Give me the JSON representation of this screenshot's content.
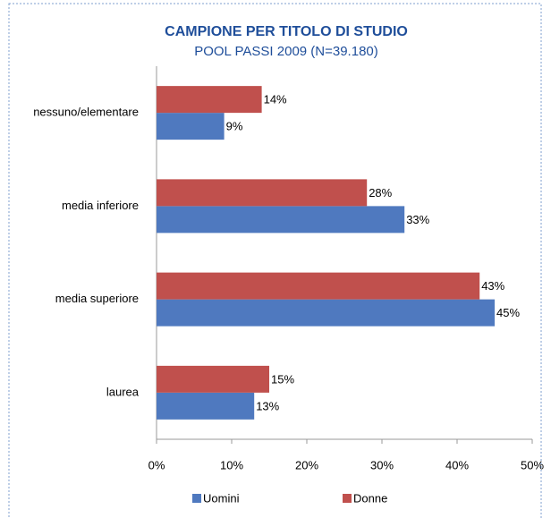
{
  "chart_data": {
    "type": "bar",
    "orientation": "horizontal",
    "title": "CAMPIONE PER TITOLO DI STUDIO",
    "subtitle": "POOL PASSI 2009 (N=39.180)",
    "categories": [
      "nessuno/elementare",
      "media inferiore",
      "media superiore",
      "laurea"
    ],
    "series": [
      {
        "name": "Uomini",
        "color": "#4f79bf",
        "values": [
          9,
          33,
          45,
          13
        ],
        "value_labels": [
          "9%",
          "33%",
          "45%",
          "13%"
        ]
      },
      {
        "name": "Donne",
        "color": "#c0504d",
        "values": [
          14,
          28,
          43,
          15
        ],
        "value_labels": [
          "14%",
          "28%",
          "43%",
          "15%"
        ]
      }
    ],
    "xlim": [
      0,
      50
    ],
    "xticks": [
      {
        "value": 0,
        "label": "0%"
      },
      {
        "value": 10,
        "label": "10%"
      },
      {
        "value": 20,
        "label": "20%"
      },
      {
        "value": 30,
        "label": "30%"
      },
      {
        "value": 40,
        "label": "40%"
      },
      {
        "value": 50,
        "label": "50%"
      }
    ],
    "legend": "bottom"
  }
}
